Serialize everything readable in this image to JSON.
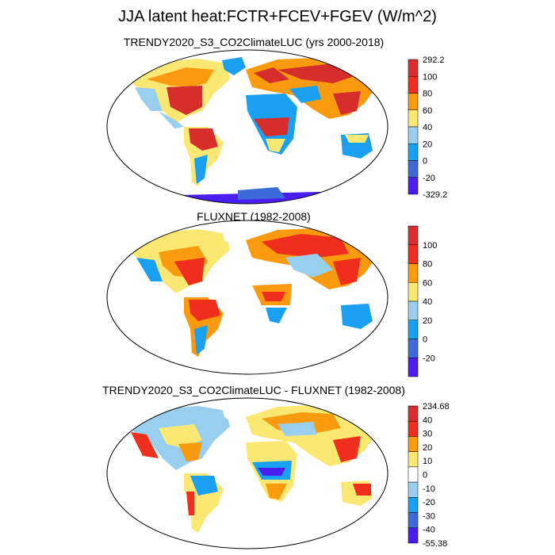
{
  "title": "JJA latent heat:FCTR+FCEV+FGEV (W/m^2)",
  "colors": {
    "darkred": "#d62d2d",
    "red": "#f02e1e",
    "orange": "#f99a0f",
    "yellow": "#fbe873",
    "lightblue": "#99cfee",
    "skyblue": "#1aa0f0",
    "royal": "#3c6ad8",
    "purple": "#4a1df0",
    "white": "#ffffff"
  },
  "panels": [
    {
      "title": "TRENDY2020_S3_CO2ClimateLUC (yrs 2000-2018)",
      "colorbar": {
        "colors": [
          "#d62d2d",
          "#f02e1e",
          "#f99a0f",
          "#fbe873",
          "#99cfee",
          "#1aa0f0",
          "#3c6ad8",
          "#4a1df0"
        ],
        "labels": [
          "292.2",
          "100",
          "80",
          "60",
          "40",
          "20",
          "0",
          "-20",
          "-329.2"
        ]
      }
    },
    {
      "title": "FLUXNET (1982-2008)",
      "colorbar": {
        "colors": [
          "#d62d2d",
          "#f02e1e",
          "#f99a0f",
          "#fbe873",
          "#99cfee",
          "#1aa0f0",
          "#3c6ad8",
          "#4a1df0"
        ],
        "labels": [
          "",
          "100",
          "80",
          "60",
          "40",
          "20",
          "0",
          "-20",
          ""
        ]
      }
    },
    {
      "title": "TRENDY2020_S3_CO2ClimateLUC - FLUXNET (1982-2008)",
      "colorbar": {
        "colors": [
          "#d62d2d",
          "#f02e1e",
          "#f99a0f",
          "#fbe873",
          "#ffffff",
          "#99cfee",
          "#1aa0f0",
          "#3c6ad8",
          "#4a1df0"
        ],
        "labels": [
          "234.68",
          "40",
          "30",
          "20",
          "10",
          "0",
          "-10",
          "-20",
          "-30",
          "-40",
          "-55.38"
        ]
      }
    }
  ]
}
